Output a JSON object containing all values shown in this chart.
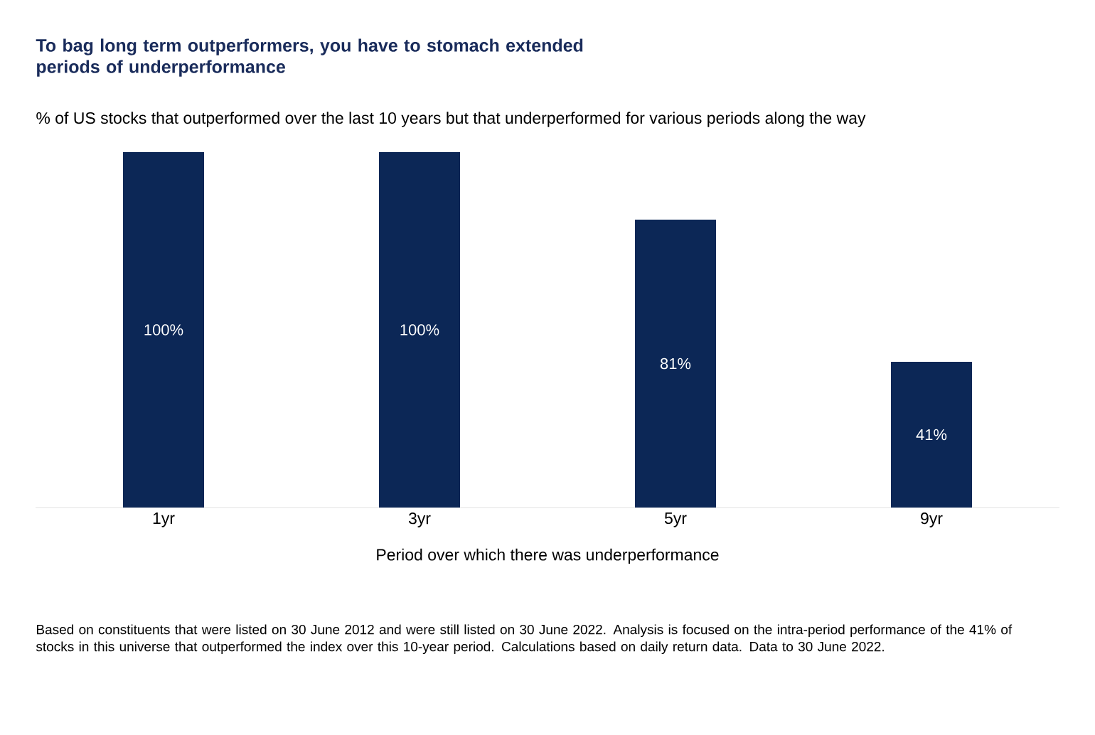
{
  "chart_data": {
    "type": "bar",
    "title": "To bag long term outperformers, you have to stomach extended periods of underperformance",
    "subtitle": "% of US stocks that outperformed over the last 10 years but that underperformed for various periods along the way",
    "xlabel": "Period over which there was underperformance",
    "categories": [
      "1yr",
      "3yr",
      "5yr",
      "9yr"
    ],
    "values": [
      100,
      100,
      81,
      41
    ],
    "value_labels": [
      "100%",
      "100%",
      "81%",
      "41%"
    ],
    "color": "#0c2756",
    "ylim": [
      0,
      100
    ],
    "tick_labels": "x",
    "annotations": [
      "Based on constituents that were listed on 30 June 2012 and were still listed on 30 June 2022. Analysis is focused on the intra-period performance of the 41% of stocks in this universe that outperformed the index over this 10-year period. Calculations based on daily return data. Data to 30 June 2022."
    ]
  }
}
